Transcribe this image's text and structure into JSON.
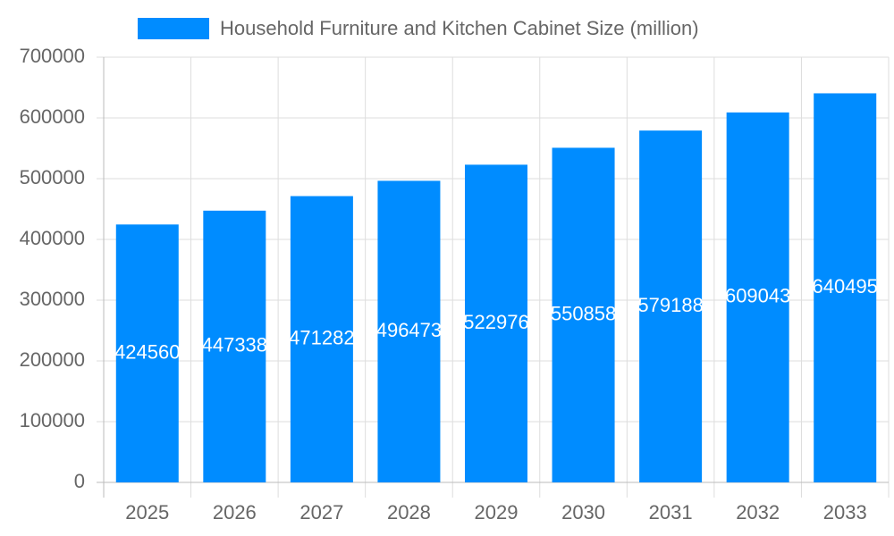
{
  "chart_data": {
    "type": "bar",
    "categories": [
      "2025",
      "2026",
      "2027",
      "2028",
      "2029",
      "2030",
      "2031",
      "2032",
      "2033"
    ],
    "series": [
      {
        "name": "Household Furniture and Kitchen Cabinet Size (million)",
        "color": "#008cff",
        "values": [
          424560,
          447338,
          471282,
          496473,
          522976,
          550858,
          579188,
          609043,
          640495
        ]
      }
    ],
    "ylim": [
      0,
      700000
    ],
    "yticks": [
      0,
      100000,
      200000,
      300000,
      400000,
      500000,
      600000,
      700000
    ],
    "grid": true,
    "legend": "top"
  }
}
